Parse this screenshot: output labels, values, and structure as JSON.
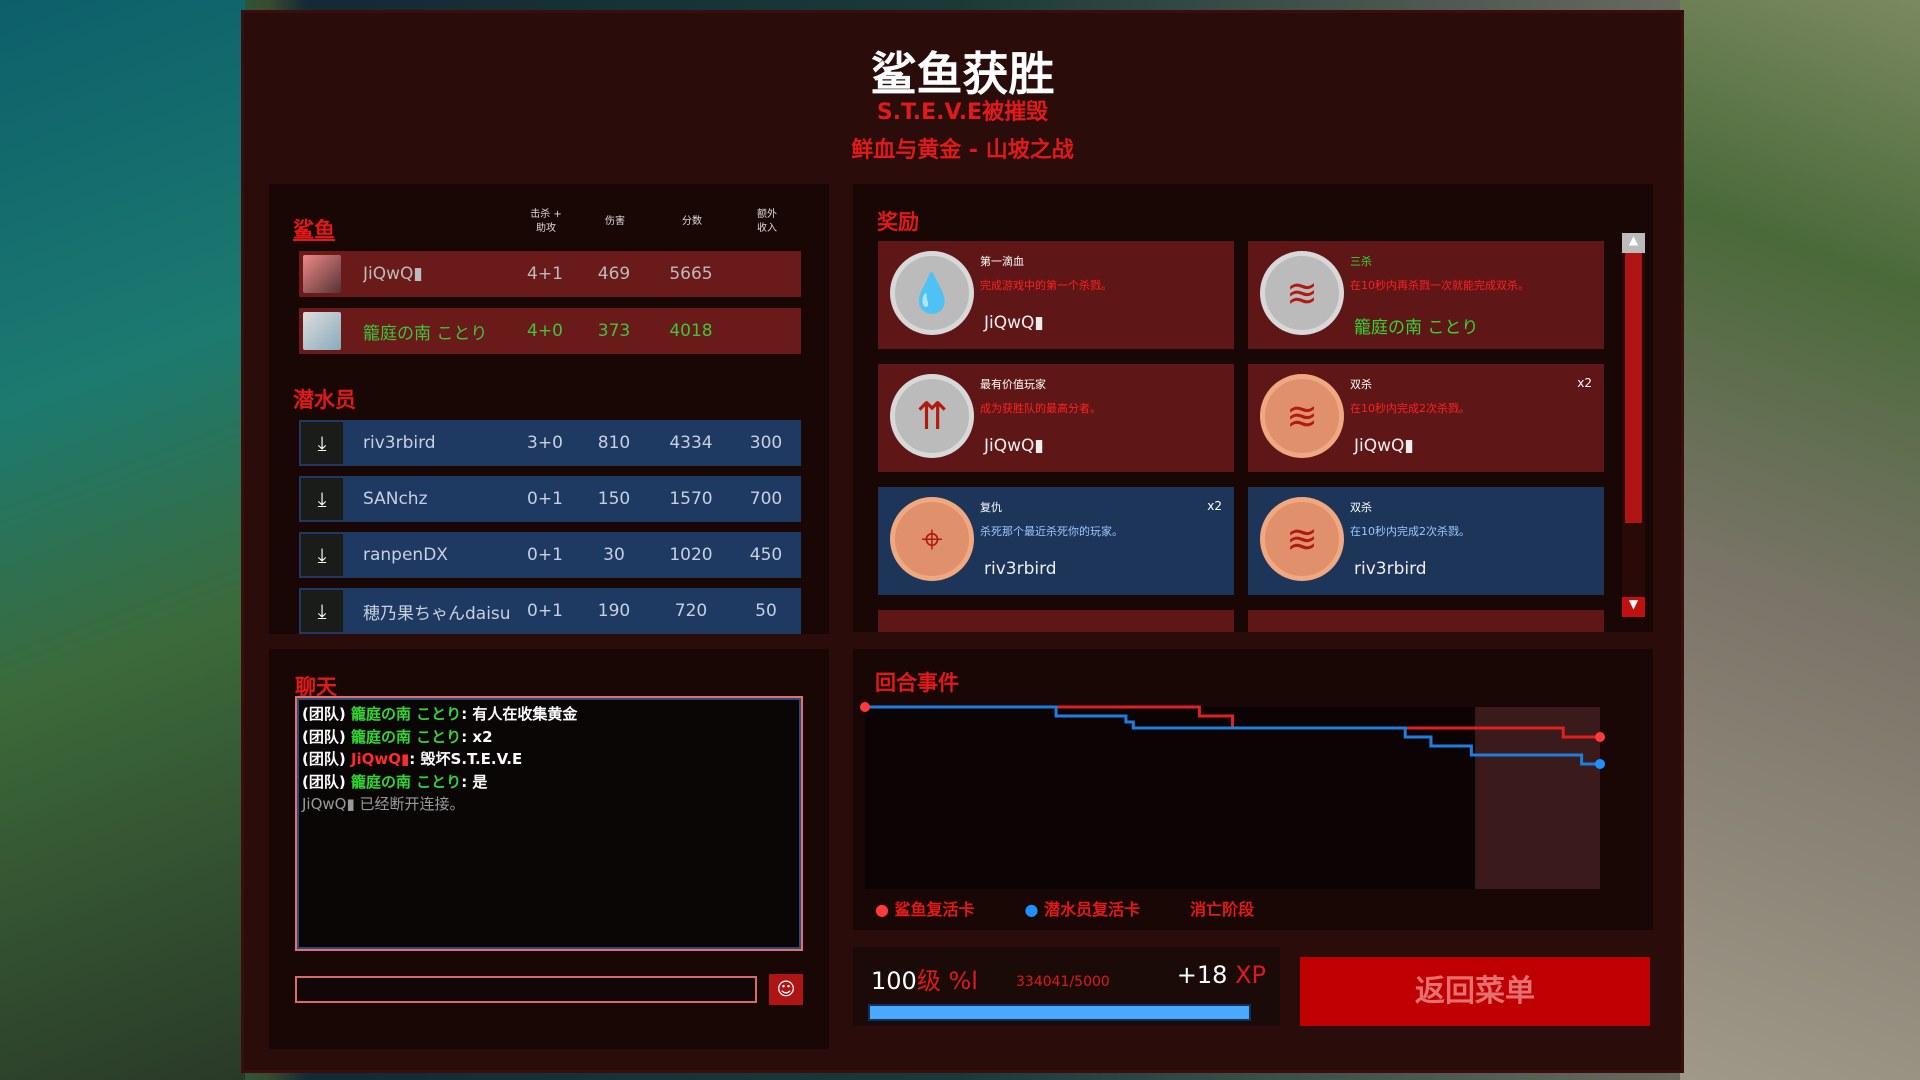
{
  "header": {
    "title": "鲨鱼获胜",
    "subtitle": "S.T.E.V.E被摧毁",
    "map": "鲜血与黄金 - 山坡之战"
  },
  "scoreboard": {
    "columns": {
      "kills_line1": "击杀 +",
      "kills_line2": "助攻",
      "damage": "伤害",
      "score": "分数",
      "extra_line1": "额外",
      "extra_line2": "收入"
    },
    "sharks": {
      "label": "鲨鱼",
      "players": [
        {
          "name": "JiQwQ▮",
          "ka": "4+1",
          "damage": "469",
          "score": "5665",
          "extra": "",
          "color": "#bbbbbb"
        },
        {
          "name": "籠庭の南 ことり",
          "ka": "4+0",
          "damage": "373",
          "score": "4018",
          "extra": "",
          "color": "#3fc43f"
        }
      ]
    },
    "divers": {
      "label": "潜水员",
      "players": [
        {
          "name": "riv3rbird",
          "ka": "3+0",
          "damage": "810",
          "score": "4334",
          "extra": "300"
        },
        {
          "name": "SANchz",
          "ka": "0+1",
          "damage": "150",
          "score": "1570",
          "extra": "700"
        },
        {
          "name": "ranpenDX",
          "ka": "0+1",
          "damage": "30",
          "score": "1020",
          "extra": "450"
        },
        {
          "name": "穂乃果ちゃんdaisu",
          "ka": "0+1",
          "damage": "190",
          "score": "720",
          "extra": "50"
        }
      ]
    }
  },
  "awards": {
    "label": "奖励",
    "items": [
      {
        "name": "第一滴血",
        "desc": "完成游戏中的第一个杀戮。",
        "player": "JiQwQ▮",
        "count": "",
        "team": "red",
        "medal": "blood-drop",
        "tier": "silver",
        "name_color": "#ffffff",
        "player_color": "#eeeeee"
      },
      {
        "name": "三杀",
        "desc": "在10秒内再杀戮一次就能完成双杀。",
        "player": "籠庭の南 ことり",
        "count": "",
        "team": "red",
        "medal": "claw-marks",
        "tier": "silver",
        "name_color": "#35d435",
        "player_color": "#35d435"
      },
      {
        "name": "最有价值玩家",
        "desc": "成为获胜队的最高分者。",
        "player": "JiQwQ▮",
        "count": "",
        "team": "red",
        "medal": "arrows-up",
        "tier": "silver",
        "name_color": "#ffffff",
        "player_color": "#eeeeee"
      },
      {
        "name": "双杀",
        "desc": "在10秒内完成2次杀戮。",
        "player": "JiQwQ▮",
        "count": "x2",
        "team": "red",
        "medal": "claw-marks",
        "tier": "bronze",
        "name_color": "#ffffff",
        "player_color": "#eeeeee"
      },
      {
        "name": "复仇",
        "desc": "杀死那个最近杀死你的玩家。",
        "player": "riv3rbird",
        "count": "x2",
        "team": "blue",
        "medal": "crosshair-shark",
        "tier": "bronze",
        "name_color": "#ffffff",
        "player_color": "#eeeeee"
      },
      {
        "name": "双杀",
        "desc": "在10秒内完成2次杀戮。",
        "player": "riv3rbird",
        "count": "",
        "team": "blue",
        "medal": "claw-marks",
        "tier": "bronze",
        "name_color": "#ffffff",
        "player_color": "#eeeeee"
      }
    ]
  },
  "chat": {
    "label": "聊天",
    "input_value": "",
    "messages": [
      {
        "prefix": "(团队)",
        "user": "籠庭の南 ことり",
        "user_color": "g",
        "text": ": 有人在收集黄金"
      },
      {
        "prefix": "(团队)",
        "user": "籠庭の南 ことり",
        "user_color": "g",
        "text": ": x2"
      },
      {
        "prefix": "(团队)",
        "user": "JiQwQ▮",
        "user_color": "r",
        "text": ": 毁坏S.T.E.V.E"
      },
      {
        "prefix": "(团队)",
        "user": "籠庭の南 ことり",
        "user_color": "g",
        "text": ": 是"
      },
      {
        "prefix": "",
        "user": "JiQwQ▮",
        "user_color": "gr",
        "text": " 已经断开连接。"
      }
    ]
  },
  "round_events": {
    "label": "回合事件",
    "legend": {
      "shark": "鲨鱼复活卡",
      "diver": "潜水员复活卡",
      "elimination": "消亡阶段"
    }
  },
  "chart_data": {
    "type": "line",
    "title": "回合事件",
    "step": true,
    "elimination_phase_start": 0.83,
    "series": [
      {
        "name": "鲨鱼复活卡",
        "color": "#e02020",
        "x": [
          0,
          0.455,
          0.5,
          0.95,
          1
        ],
        "y": [
          1,
          0.97,
          0.93,
          0.9,
          0.9
        ]
      },
      {
        "name": "潜水员复活卡",
        "color": "#1e7ee0",
        "x": [
          0,
          0.26,
          0.355,
          0.365,
          0.735,
          0.77,
          0.825,
          0.975,
          1
        ],
        "y": [
          1,
          0.97,
          0.95,
          0.93,
          0.9,
          0.87,
          0.84,
          0.81,
          0.81
        ]
      }
    ]
  },
  "xp": {
    "level": "100",
    "level_suffix": "级 %l",
    "progress_text": "334041/5000",
    "gain": "+18",
    "gain_unit": "XP",
    "progress": 1.0
  },
  "return_button": "返回菜单",
  "colors": {
    "accent": "#e01a1a",
    "shark_row": "#6a1a18",
    "diver_row": "#1e3a62",
    "xp_bar": "#4aa8ff",
    "button": "#c00000"
  }
}
